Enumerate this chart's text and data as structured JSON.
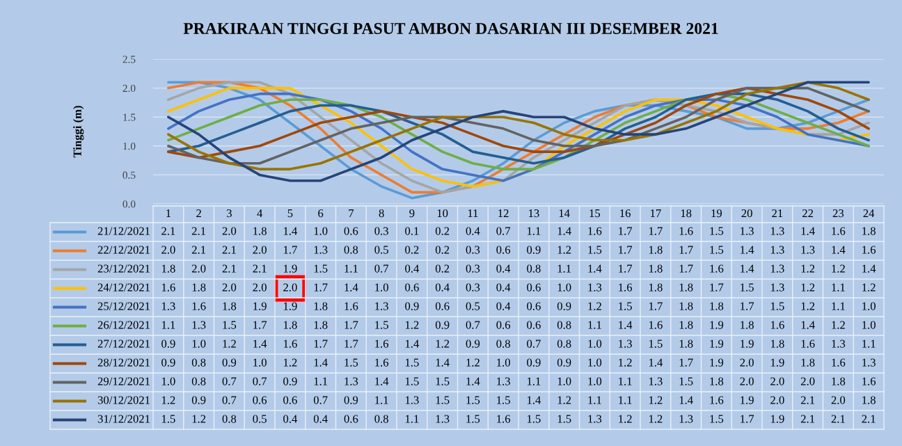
{
  "chart_data": {
    "type": "line",
    "title": "PRAKIRAAN TINGGI PASUT AMBON DASARIAN III DESEMBER 2021",
    "ylabel": "Tinggi (m)",
    "categories": [
      "1",
      "2",
      "3",
      "4",
      "5",
      "6",
      "7",
      "8",
      "9",
      "10",
      "11",
      "12",
      "13",
      "14",
      "15",
      "16",
      "17",
      "18",
      "19",
      "20",
      "21",
      "22",
      "23",
      "24"
    ],
    "ylim": [
      0,
      2.5
    ],
    "yticks": [
      {
        "value": 0,
        "label": "0.0"
      },
      {
        "value": 0.5,
        "label": "0.5"
      },
      {
        "value": 1,
        "label": "1.0"
      },
      {
        "value": 1.5,
        "label": "1.5"
      },
      {
        "value": 2,
        "label": "2.0"
      },
      {
        "value": 2.5,
        "label": "2.5"
      }
    ],
    "grid": "y",
    "legend": "bottom",
    "marker": "none",
    "line_style": "solid",
    "series": [
      {
        "name": "21/12/2021",
        "color": "#5b9bd5",
        "values": [
          2.1,
          2.1,
          2.0,
          1.8,
          1.4,
          1.0,
          0.6,
          0.3,
          0.1,
          0.2,
          0.4,
          0.7,
          1.1,
          1.4,
          1.6,
          1.7,
          1.7,
          1.6,
          1.5,
          1.3,
          1.3,
          1.4,
          1.6,
          1.8
        ],
        "value_labels": [
          "2.1",
          "2.1",
          "2.0",
          "1.8",
          "1.4",
          "1.0",
          "0.6",
          "0.3",
          "0.1",
          "0.2",
          "0.4",
          "0.7",
          "1.1",
          "1.4",
          "1.6",
          "1.7",
          "1.7",
          "1.6",
          "1.5",
          "1.3",
          "1.3",
          "1.4",
          "1.6",
          "1.8"
        ]
      },
      {
        "name": "22/12/2021",
        "color": "#ed7d31",
        "values": [
          2.0,
          2.1,
          2.1,
          2.0,
          1.7,
          1.3,
          0.8,
          0.5,
          0.2,
          0.2,
          0.3,
          0.6,
          0.9,
          1.2,
          1.5,
          1.7,
          1.8,
          1.7,
          1.5,
          1.4,
          1.3,
          1.3,
          1.4,
          1.6
        ],
        "value_labels": [
          "2.0",
          "2.1",
          "2.1",
          "2.0",
          "1.7",
          "1.3",
          "0.8",
          "0.5",
          "0.2",
          "0.2",
          "0.3",
          "0.6",
          "0.9",
          "1.2",
          "1.5",
          "1.7",
          "1.8",
          "1.7",
          "1.5",
          "1.4",
          "1.3",
          "1.3",
          "1.4",
          "1.6"
        ]
      },
      {
        "name": "23/12/2021",
        "color": "#a5a5a5",
        "values": [
          1.8,
          2.0,
          2.1,
          2.1,
          1.9,
          1.5,
          1.1,
          0.7,
          0.4,
          0.2,
          0.3,
          0.4,
          0.8,
          1.1,
          1.4,
          1.7,
          1.8,
          1.7,
          1.6,
          1.4,
          1.3,
          1.2,
          1.2,
          1.4
        ],
        "value_labels": [
          "1.8",
          "2.0",
          "2.1",
          "2.1",
          "1.9",
          "1.5",
          "1.1",
          "0.7",
          "0.4",
          "0.2",
          "0.3",
          "0.4",
          "0.8",
          "1.1",
          "1.4",
          "1.7",
          "1.8",
          "1.7",
          "1.6",
          "1.4",
          "1.3",
          "1.2",
          "1.2",
          "1.4"
        ]
      },
      {
        "name": "24/12/2021",
        "color": "#ffc000",
        "values": [
          1.6,
          1.8,
          2.0,
          2.0,
          2.0,
          1.7,
          1.4,
          1.0,
          0.6,
          0.4,
          0.3,
          0.4,
          0.6,
          1.0,
          1.3,
          1.6,
          1.8,
          1.8,
          1.7,
          1.5,
          1.3,
          1.2,
          1.1,
          1.2
        ],
        "value_labels": [
          "1.6",
          "1.8",
          "2.0",
          "2.0",
          "2.0",
          "1.7",
          "1.4",
          "1.0",
          "0.6",
          "0.4",
          "0.3",
          "0.4",
          "0.6",
          "1.0",
          "1.3",
          "1.6",
          "1.8",
          "1.8",
          "1.7",
          "1.5",
          "1.3",
          "1.2",
          "1.1",
          "1.2"
        ]
      },
      {
        "name": "25/12/2021",
        "color": "#4472c4",
        "values": [
          1.3,
          1.6,
          1.8,
          1.9,
          1.9,
          1.8,
          1.6,
          1.3,
          0.9,
          0.6,
          0.5,
          0.4,
          0.6,
          0.9,
          1.2,
          1.5,
          1.7,
          1.8,
          1.8,
          1.7,
          1.5,
          1.2,
          1.1,
          1.0
        ],
        "value_labels": [
          "1.3",
          "1.6",
          "1.8",
          "1.9",
          "1.9",
          "1.8",
          "1.6",
          "1.3",
          "0.9",
          "0.6",
          "0.5",
          "0.4",
          "0.6",
          "0.9",
          "1.2",
          "1.5",
          "1.7",
          "1.8",
          "1.8",
          "1.7",
          "1.5",
          "1.2",
          "1.1",
          "1.0"
        ]
      },
      {
        "name": "26/12/2021",
        "color": "#70ad47",
        "values": [
          1.1,
          1.3,
          1.5,
          1.7,
          1.8,
          1.8,
          1.7,
          1.5,
          1.2,
          0.9,
          0.7,
          0.6,
          0.6,
          0.8,
          1.1,
          1.4,
          1.6,
          1.8,
          1.9,
          1.8,
          1.6,
          1.4,
          1.2,
          1.0
        ],
        "value_labels": [
          "1.1",
          "1.3",
          "1.5",
          "1.7",
          "1.8",
          "1.8",
          "1.7",
          "1.5",
          "1.2",
          "0.9",
          "0.7",
          "0.6",
          "0.6",
          "0.8",
          "1.1",
          "1.4",
          "1.6",
          "1.8",
          "1.9",
          "1.8",
          "1.6",
          "1.4",
          "1.2",
          "1.0"
        ]
      },
      {
        "name": "27/12/2021",
        "color": "#255e91",
        "values": [
          0.9,
          1.0,
          1.2,
          1.4,
          1.6,
          1.7,
          1.7,
          1.6,
          1.4,
          1.2,
          0.9,
          0.8,
          0.7,
          0.8,
          1.0,
          1.3,
          1.5,
          1.8,
          1.9,
          1.9,
          1.8,
          1.6,
          1.3,
          1.1
        ],
        "value_labels": [
          "0.9",
          "1.0",
          "1.2",
          "1.4",
          "1.6",
          "1.7",
          "1.7",
          "1.6",
          "1.4",
          "1.2",
          "0.9",
          "0.8",
          "0.7",
          "0.8",
          "1.0",
          "1.3",
          "1.5",
          "1.8",
          "1.9",
          "1.9",
          "1.8",
          "1.6",
          "1.3",
          "1.1"
        ]
      },
      {
        "name": "28/12/2021",
        "color": "#9e480e",
        "values": [
          0.9,
          0.8,
          0.9,
          1.0,
          1.2,
          1.4,
          1.5,
          1.6,
          1.5,
          1.4,
          1.2,
          1.0,
          0.9,
          0.9,
          1.0,
          1.2,
          1.4,
          1.7,
          1.9,
          2.0,
          1.9,
          1.8,
          1.6,
          1.3
        ],
        "value_labels": [
          "0.9",
          "0.8",
          "0.9",
          "1.0",
          "1.2",
          "1.4",
          "1.5",
          "1.6",
          "1.5",
          "1.4",
          "1.2",
          "1.0",
          "0.9",
          "0.9",
          "1.0",
          "1.2",
          "1.4",
          "1.7",
          "1.9",
          "2.0",
          "1.9",
          "1.8",
          "1.6",
          "1.3"
        ]
      },
      {
        "name": "29/12/2021",
        "color": "#636363",
        "values": [
          1.0,
          0.8,
          0.7,
          0.7,
          0.9,
          1.1,
          1.3,
          1.4,
          1.5,
          1.5,
          1.4,
          1.3,
          1.1,
          1.0,
          1.0,
          1.1,
          1.3,
          1.5,
          1.8,
          2.0,
          2.0,
          2.0,
          1.8,
          1.6
        ],
        "value_labels": [
          "1.0",
          "0.8",
          "0.7",
          "0.7",
          "0.9",
          "1.1",
          "1.3",
          "1.4",
          "1.5",
          "1.5",
          "1.4",
          "1.3",
          "1.1",
          "1.0",
          "1.0",
          "1.1",
          "1.3",
          "1.5",
          "1.8",
          "2.0",
          "2.0",
          "2.0",
          "1.8",
          "1.6"
        ]
      },
      {
        "name": "30/12/2021",
        "color": "#997300",
        "values": [
          1.2,
          0.9,
          0.7,
          0.6,
          0.6,
          0.7,
          0.9,
          1.1,
          1.3,
          1.5,
          1.5,
          1.5,
          1.4,
          1.2,
          1.1,
          1.1,
          1.2,
          1.4,
          1.6,
          1.9,
          2.0,
          2.1,
          2.0,
          1.8
        ],
        "value_labels": [
          "1.2",
          "0.9",
          "0.7",
          "0.6",
          "0.6",
          "0.7",
          "0.9",
          "1.1",
          "1.3",
          "1.5",
          "1.5",
          "1.5",
          "1.4",
          "1.2",
          "1.1",
          "1.1",
          "1.2",
          "1.4",
          "1.6",
          "1.9",
          "2.0",
          "2.1",
          "2.0",
          "1.8"
        ]
      },
      {
        "name": "31/12/2021",
        "color": "#264478",
        "values": [
          1.5,
          1.2,
          0.8,
          0.5,
          0.4,
          0.4,
          0.6,
          0.8,
          1.1,
          1.3,
          1.5,
          1.6,
          1.5,
          1.5,
          1.3,
          1.2,
          1.2,
          1.3,
          1.5,
          1.7,
          1.9,
          2.1,
          2.1,
          2.1
        ],
        "value_labels": [
          "1.5",
          "1.2",
          "0.8",
          "0.5",
          "0.4",
          "0.4",
          "0.6",
          "0.8",
          "1.1",
          "1.3",
          "1.5",
          "1.6",
          "1.5",
          "1.5",
          "1.3",
          "1.2",
          "1.2",
          "1.3",
          "1.5",
          "1.7",
          "1.9",
          "2.1",
          "2.1",
          "2.1"
        ]
      }
    ]
  }
}
